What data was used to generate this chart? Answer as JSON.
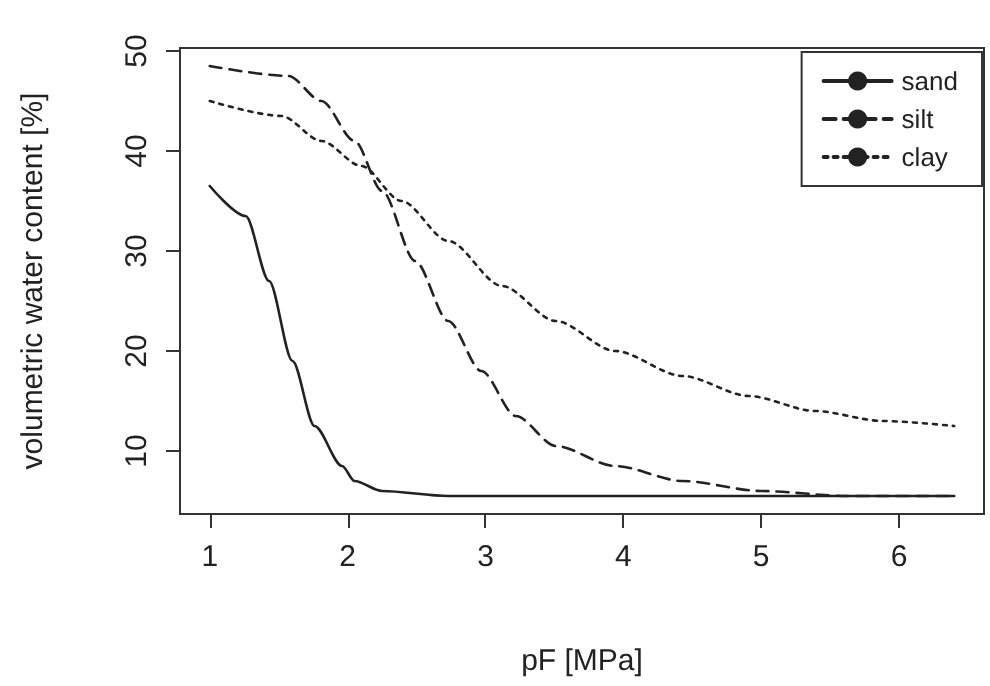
{
  "chart_data": {
    "type": "line",
    "xlabel": "pF [MPa]",
    "ylabel": "volumetric water content [%]",
    "xlim": [
      0.784,
      6.616
    ],
    "xticks": [
      1,
      2,
      3,
      4,
      5,
      6
    ],
    "ylim": [
      3.7,
      50.3
    ],
    "yticks": [
      10,
      20,
      30,
      40,
      50
    ],
    "grid": false,
    "legend": "top right",
    "marker": "none",
    "series": [
      {
        "name": "sand",
        "color": "#222222",
        "line_style": "solid",
        "x": [
          1,
          1.26,
          1.43,
          1.6,
          1.76,
          1.96,
          2.05,
          2.25,
          2.73,
          3.5,
          4.5,
          5.5,
          6.4
        ],
        "values": [
          36.5,
          33.5,
          27,
          19,
          12.5,
          8.5,
          7,
          6,
          5.5,
          5.5,
          5.5,
          5.5,
          5.5
        ]
      },
      {
        "name": "silt",
        "color": "#222222",
        "line_style": "dashed",
        "x": [
          1,
          1.57,
          1.81,
          2.05,
          2.25,
          2.49,
          2.73,
          2.97,
          3.22,
          3.51,
          3.94,
          4.43,
          5.0,
          5.63,
          6.4
        ],
        "values": [
          48.5,
          47.5,
          45,
          41,
          36,
          29,
          23,
          18,
          13.5,
          10.5,
          8.5,
          7,
          6,
          5.5,
          5.5
        ]
      },
      {
        "name": "clay",
        "color": "#222222",
        "line_style": "dotted",
        "x": [
          1,
          1.52,
          1.81,
          2.1,
          2.39,
          2.73,
          3.12,
          3.51,
          3.94,
          4.43,
          4.91,
          5.39,
          5.88,
          6.4
        ],
        "values": [
          45,
          43.5,
          41,
          38.5,
          35,
          31,
          26.5,
          23,
          20,
          17.5,
          15.5,
          14,
          13,
          12.5
        ]
      }
    ]
  }
}
